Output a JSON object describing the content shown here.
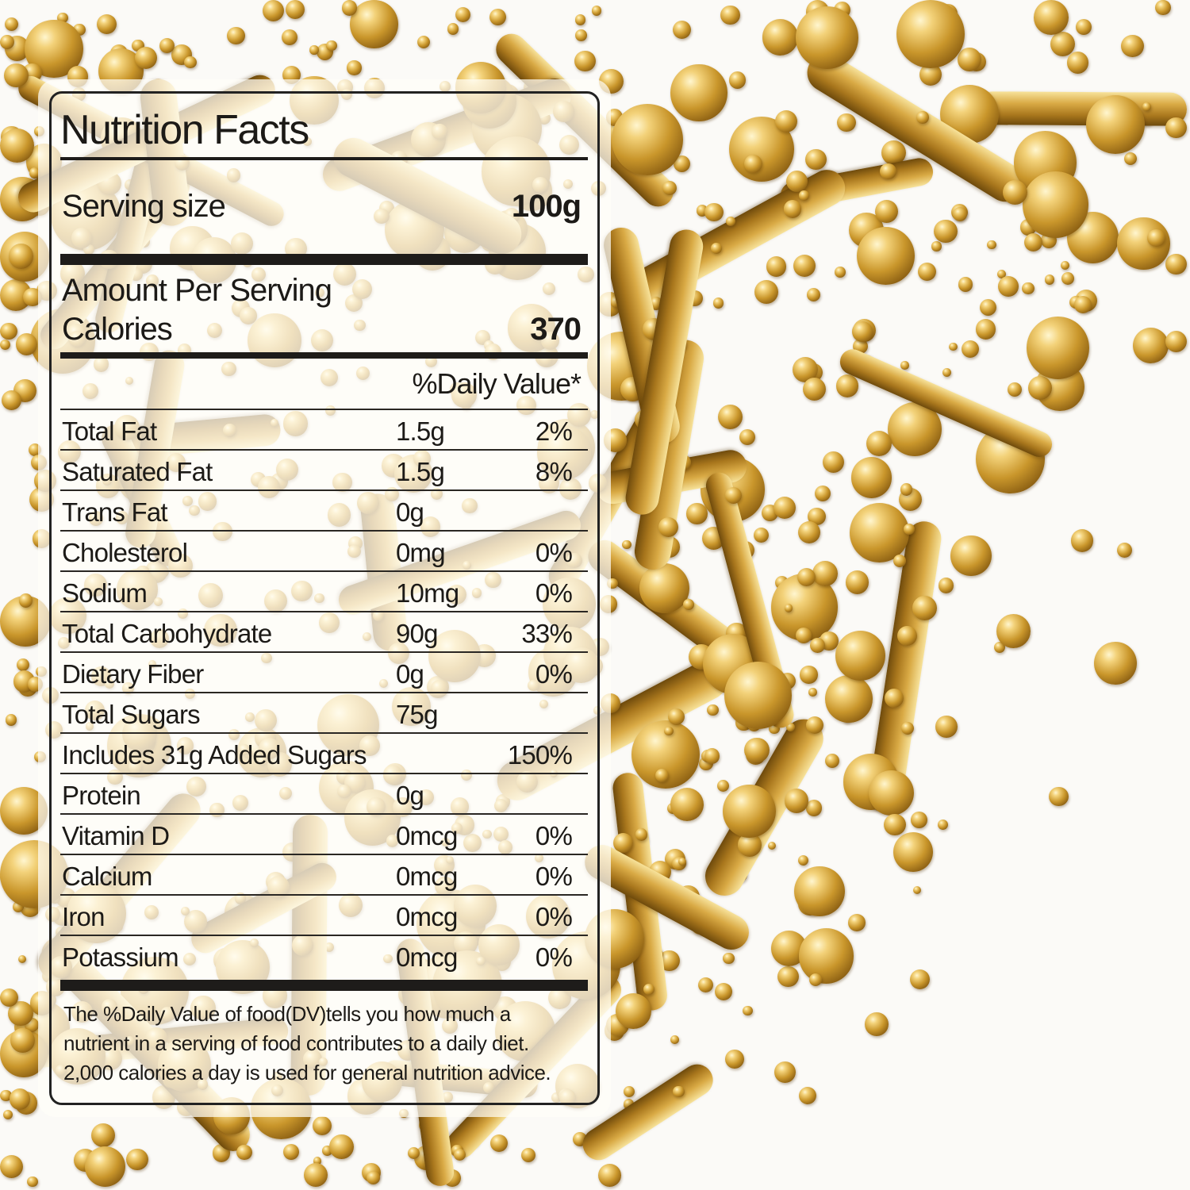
{
  "label": {
    "title": "Nutrition Facts",
    "serving_size_label": "Serving size",
    "serving_size_value": "100g",
    "amount_per_serving": "Amount Per Serving",
    "calories_label": "Calories",
    "calories_value": "370",
    "daily_value_header": "%Daily Value*",
    "rows": [
      {
        "name": "Total Fat",
        "amount": "1.5g",
        "dv": "2%"
      },
      {
        "name": "Saturated Fat",
        "amount": "1.5g",
        "dv": "8%"
      },
      {
        "name": "Trans Fat",
        "amount": "0g",
        "dv": ""
      },
      {
        "name": "Cholesterol",
        "amount": "0mg",
        "dv": "0%"
      },
      {
        "name": "Sodium",
        "amount": "10mg",
        "dv": "0%"
      },
      {
        "name": "Total Carbohydrate",
        "amount": "90g",
        "dv": "33%"
      },
      {
        "name": "Dietary Fiber",
        "amount": "0g",
        "dv": "0%"
      },
      {
        "name": "Total Sugars",
        "amount": "75g",
        "dv": ""
      },
      {
        "name": "Includes 31g Added Sugars",
        "amount": "",
        "dv": "150%"
      },
      {
        "name": "Protein",
        "amount": "0g",
        "dv": ""
      },
      {
        "name": "Vitamin D",
        "amount": "0mcg",
        "dv": "0%"
      },
      {
        "name": "Calcium",
        "amount": "0mcg",
        "dv": "0%"
      },
      {
        "name": "Iron",
        "amount": "0mcg",
        "dv": "0%"
      },
      {
        "name": "Potassium",
        "amount": "0mcg",
        "dv": "0%"
      }
    ],
    "footnote": [
      "The %Daily Value of food(DV)tells you how much a",
      "nutrient in a serving of food contributes to a daily diet.",
      "2,000 calories a day is used for general nutrition advice."
    ]
  },
  "background": {
    "subject": "gold sprinkles",
    "colors": {
      "gold": "#c9962b",
      "highlight": "#fff6cf"
    }
  }
}
